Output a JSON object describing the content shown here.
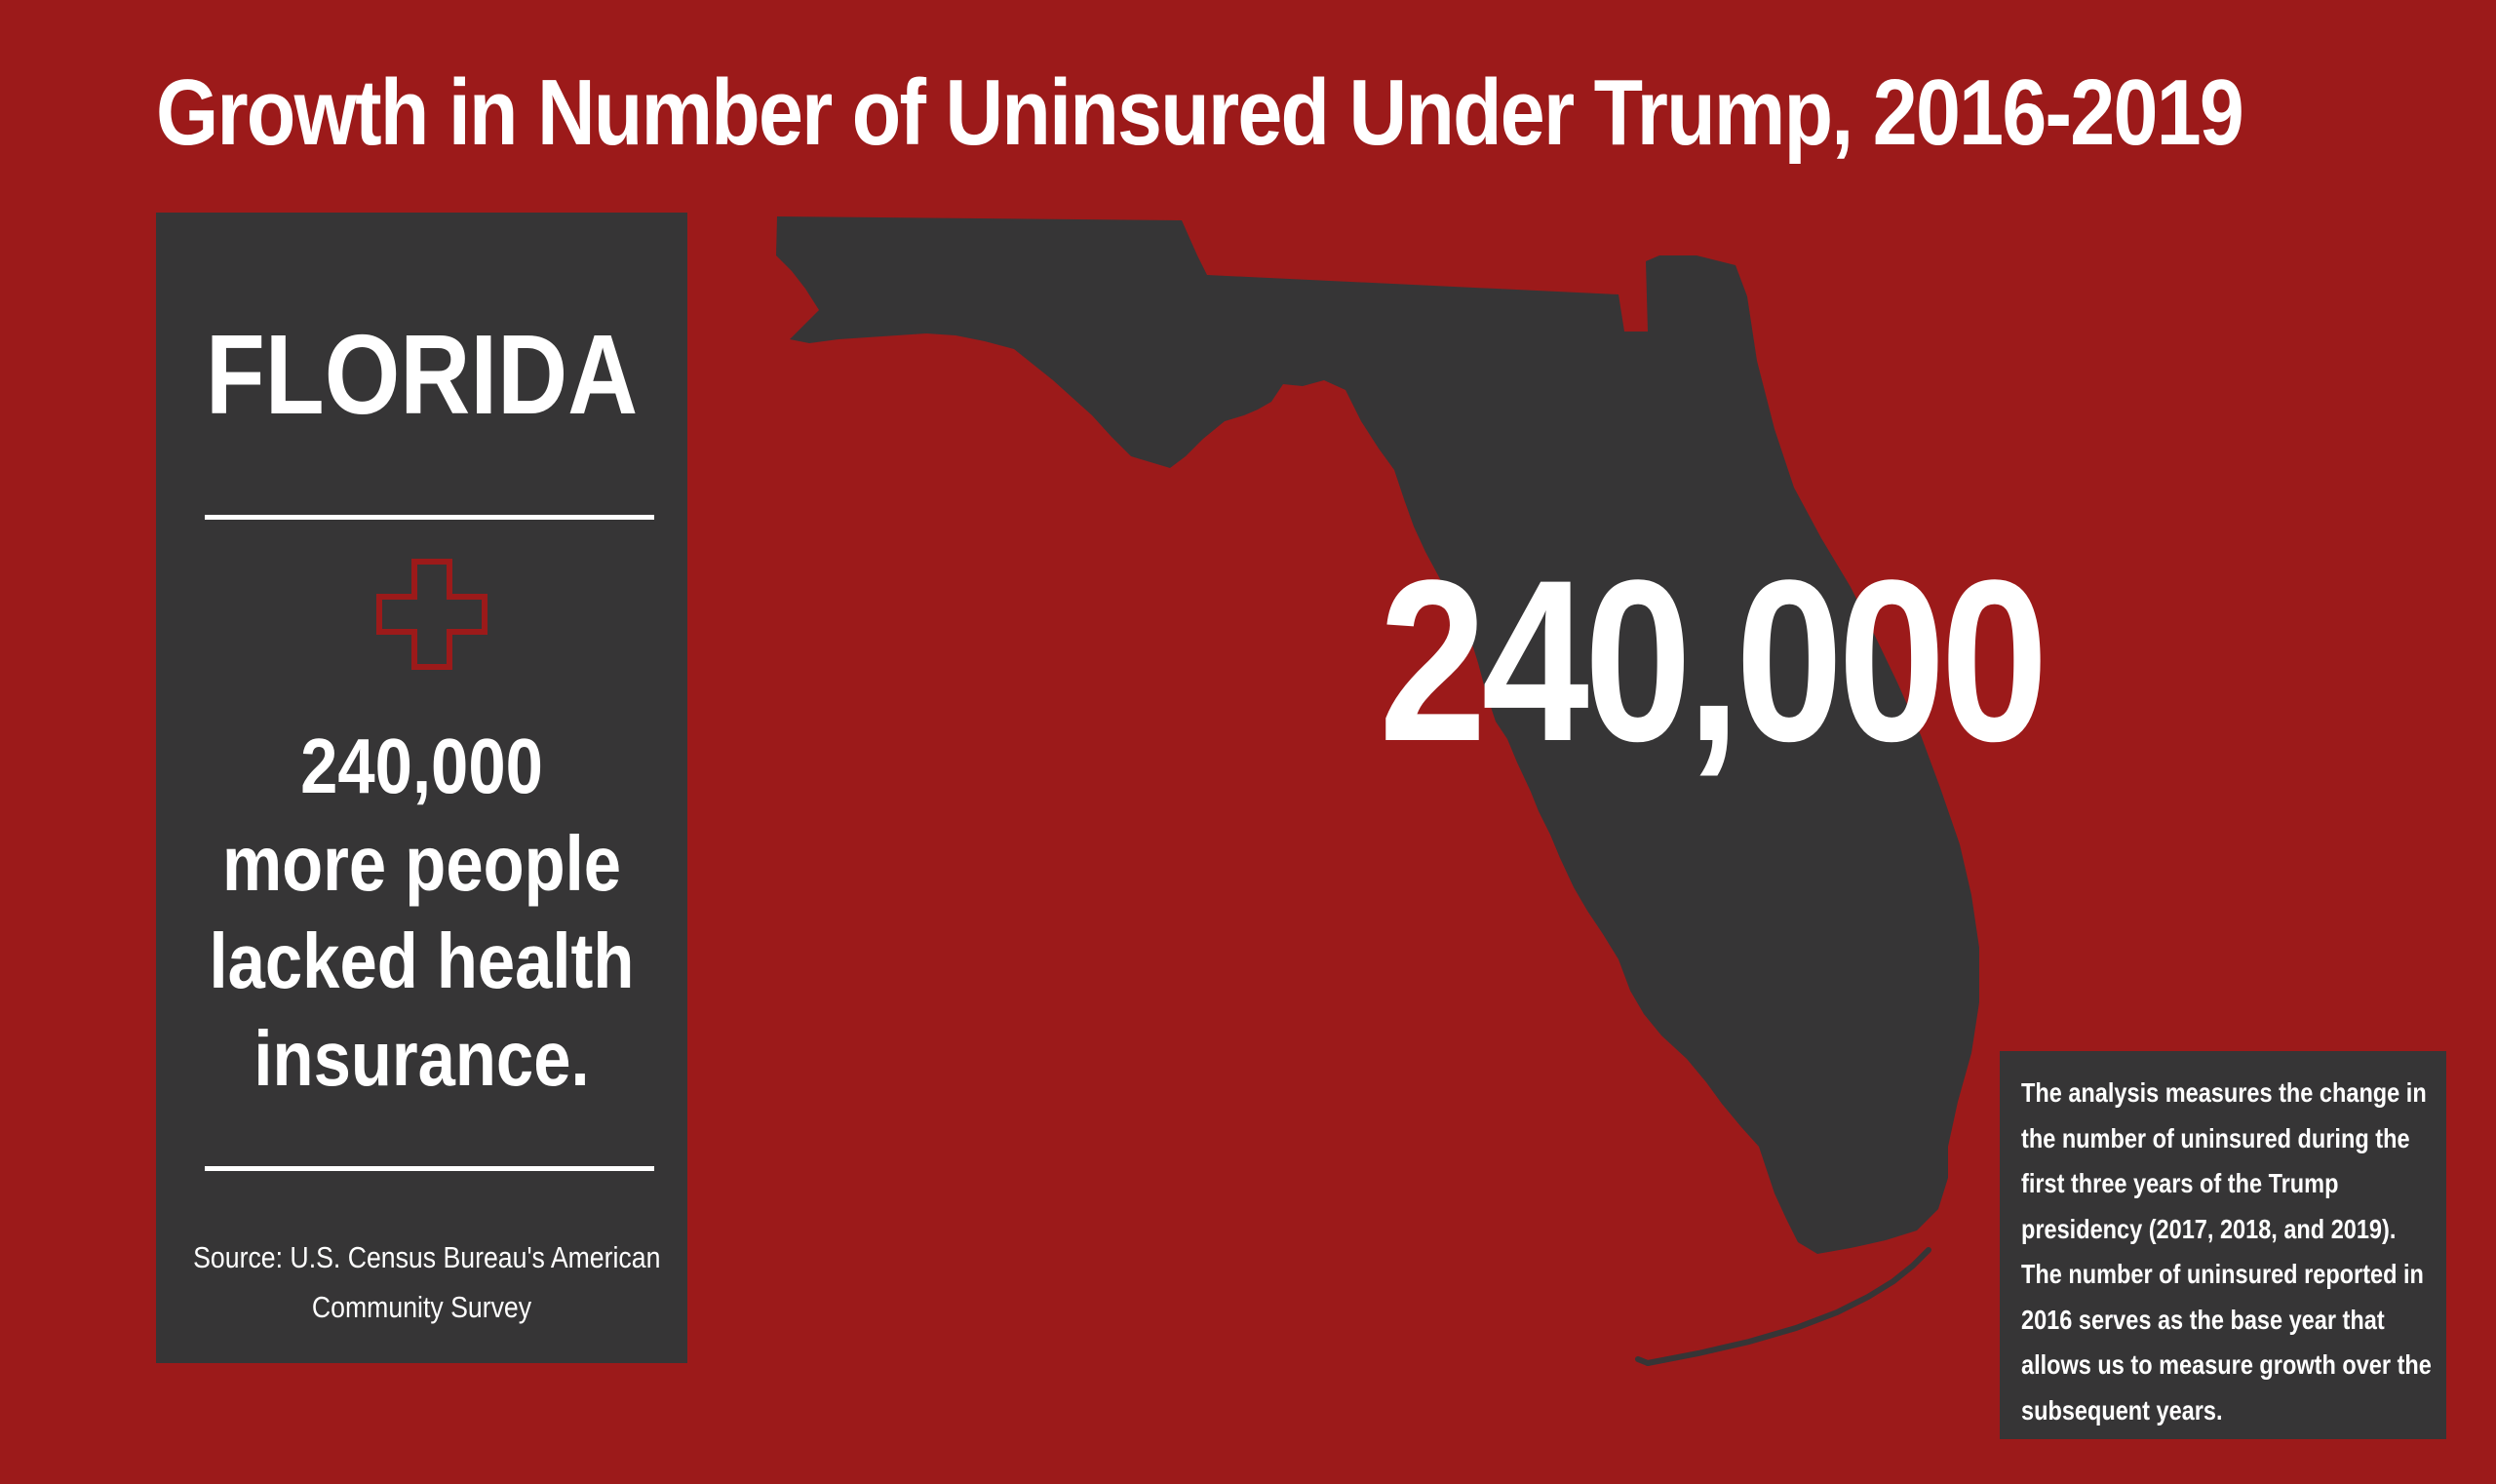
{
  "title": "Growth in Number of Uninsured Under Trump, 2016-2019",
  "map": {
    "state": "Florida",
    "headline_value": "240,000"
  },
  "sidebar": {
    "state_name": "FLORIDA",
    "icon": "medical-cross-icon",
    "stat_lines": [
      "240,000",
      "more people",
      "lacked health",
      "insurance."
    ],
    "source_lines": [
      "Source: U.S. Census Bureau's American",
      "Community Survey"
    ]
  },
  "note": {
    "lines": [
      "The analysis measures the change in",
      "the number of uninsured during the",
      "first three years of the Trump",
      "presidency (2017, 2018, and 2019).",
      "The number of uninsured reported in",
      "2016 serves as the base year that",
      "allows us to measure growth over the",
      "subsequent years."
    ]
  },
  "colors": {
    "background": "#9c1a1a",
    "panel": "#363536",
    "map_fill": "#363536",
    "icon_outline": "#9c1a1a",
    "text": "#ffffff"
  }
}
